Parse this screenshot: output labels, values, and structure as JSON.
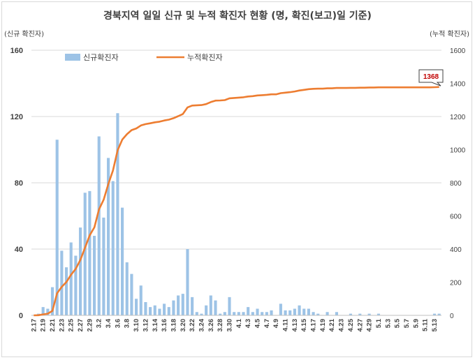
{
  "chart_data": {
    "type": "bar",
    "title": "경북지역 일일 신규 및 누적 확진자 현황 (명, 확진(보고)일 기준)",
    "ylabel": "(신규 확진자)",
    "y2label": "(누적 확진자)",
    "ylim": [
      0,
      160
    ],
    "y2lim": [
      0,
      1600
    ],
    "yticks": [
      "0",
      "40",
      "80",
      "120",
      "160"
    ],
    "y2ticks": [
      "0",
      "200",
      "400",
      "600",
      "800",
      "1000",
      "1200",
      "1400",
      "1600"
    ],
    "legend": {
      "position": "top-left",
      "bar_label": "신규확진자",
      "line_label": "누적확진자"
    },
    "x": [
      "2.17",
      "2.18",
      "2.19",
      "2.20",
      "2.21",
      "2.22",
      "2.23",
      "2.24",
      "2.25",
      "2.26",
      "2.27",
      "2.28",
      "2.29",
      "3.1",
      "3.2",
      "3.3",
      "3.4",
      "3.5",
      "3.6",
      "3.7",
      "3.8",
      "3.9",
      "3.10",
      "3.11",
      "3.12",
      "3.13",
      "3.14",
      "3.15",
      "3.16",
      "3.17",
      "3.18",
      "3.19",
      "3.20",
      "3.21",
      "3.22",
      "3.23",
      "3.24",
      "3.25",
      "3.26",
      "3.27",
      "3.28",
      "3.29",
      "3.30",
      "3.31",
      "4.1",
      "4.2",
      "4.3",
      "4.4",
      "4.5",
      "4.6",
      "4.7",
      "4.8",
      "4.9",
      "4.10",
      "4.11",
      "4.12",
      "4.13",
      "4.14",
      "4.15",
      "4.16",
      "4.17",
      "4.18",
      "4.19",
      "4.20",
      "4.21",
      "4.22",
      "4.23",
      "4.24",
      "4.25",
      "4.26",
      "4.27",
      "4.28",
      "4.29",
      "4.30",
      "5.1",
      "5.2",
      "5.3",
      "5.4",
      "5.5",
      "5.6",
      "5.7",
      "5.8",
      "5.9",
      "5.10",
      "5.11",
      "5.12",
      "5.13",
      "5.14"
    ],
    "xtick_labels": [
      "2.17",
      "2.19",
      "2.21",
      "2.23",
      "2.25",
      "2.27",
      "2.29",
      "3.2",
      "3.4",
      "3.6",
      "3.8",
      "3.10",
      "3.12",
      "3.14",
      "3.16",
      "3.18",
      "3.20",
      "3.22",
      "3.24",
      "3.26",
      "3.28",
      "3.30",
      "4.1",
      "4.3",
      "4.5",
      "4.7",
      "4.9",
      "4.11",
      "4.13",
      "4.15",
      "4.17",
      "4.19",
      "4.21",
      "4.23",
      "4.25",
      "4.27",
      "4.29",
      "5.1",
      "5.3",
      "5.5",
      "5.7",
      "5.9",
      "5.11",
      "5.13"
    ],
    "series": [
      {
        "name": "신규확진자",
        "type": "bar",
        "color": "#9dc3e6",
        "values": [
          0,
          1,
          5,
          4,
          17,
          106,
          39,
          29,
          44,
          36,
          53,
          74,
          75,
          48,
          108,
          59,
          95,
          81,
          122,
          65,
          32,
          25,
          10,
          18,
          8,
          5,
          6,
          4,
          7,
          5,
          9,
          12,
          13,
          40,
          11,
          2,
          1,
          6,
          12,
          9,
          1,
          2,
          11,
          2,
          2,
          2,
          5,
          2,
          4,
          2,
          2,
          3,
          0,
          7,
          3,
          3,
          4,
          6,
          4,
          4,
          2,
          1,
          0,
          2,
          0,
          2,
          0,
          0,
          1,
          0,
          1,
          0,
          1,
          0,
          1,
          0,
          0,
          0,
          0,
          0,
          0,
          0,
          0,
          0,
          0,
          0,
          1,
          1
        ]
      },
      {
        "name": "누적확진자",
        "type": "line",
        "color": "#ed7d31",
        "values": [
          0,
          1,
          6,
          10,
          27,
          133,
          172,
          201,
          245,
          281,
          334,
          408,
          483,
          531,
          639,
          698,
          793,
          874,
          996,
          1061,
          1093,
          1118,
          1128,
          1146,
          1154,
          1159,
          1165,
          1169,
          1176,
          1181,
          1190,
          1202,
          1215,
          1255,
          1266,
          1268,
          1269,
          1275,
          1287,
          1296,
          1297,
          1299,
          1310,
          1312,
          1314,
          1316,
          1321,
          1323,
          1327,
          1329,
          1331,
          1334,
          1334,
          1341,
          1344,
          1347,
          1351,
          1357,
          1361,
          1365,
          1367,
          1368,
          1368,
          1370,
          1370,
          1372,
          1372,
          1372,
          1373,
          1373,
          1374,
          1374,
          1375,
          1375,
          1376,
          1376,
          1376,
          1376,
          1376,
          1376,
          1376,
          1376,
          1376,
          1376,
          1376,
          1376,
          1377,
          1378
        ]
      }
    ],
    "annotation": "1368"
  }
}
